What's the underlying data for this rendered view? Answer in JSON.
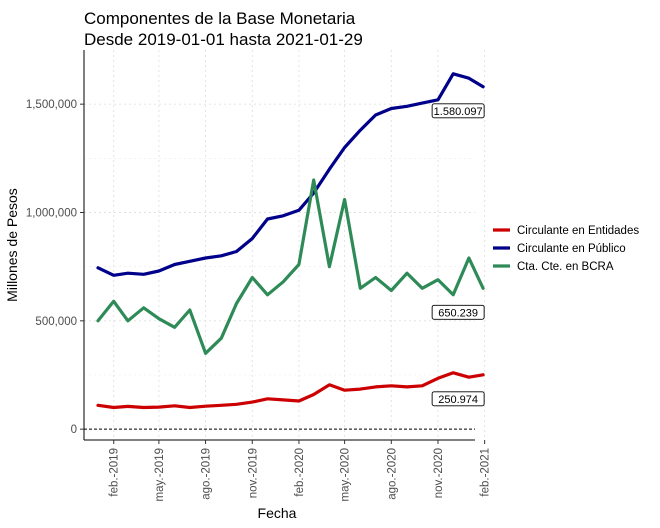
{
  "chart_data": {
    "type": "line",
    "title": [
      "Componentes de la Base Monetaria",
      "Desde 2019-01-01 hasta 2021-01-29"
    ],
    "xlabel": "Fecha",
    "ylabel": "Millones de Pesos",
    "xlim": [
      "2019-01-01",
      "2021-01-29"
    ],
    "ylim": [
      -50000,
      1750000
    ],
    "y_ticks": [
      0,
      500000,
      1000000,
      1500000
    ],
    "y_tick_labels": [
      "0",
      "500,000",
      "1,000,000",
      "1,500,000"
    ],
    "x_ticks": [
      "2019-02-01",
      "2019-05-01",
      "2019-08-01",
      "2019-11-01",
      "2020-02-01",
      "2020-05-01",
      "2020-08-01",
      "2020-11-01",
      "2021-02-01"
    ],
    "x_tick_labels": [
      "feb.-2019",
      "may.-2019",
      "ago.-2019",
      "nov.-2019",
      "feb.-2020",
      "may.-2020",
      "ago.-2020",
      "nov.-2020",
      "feb.-2021"
    ],
    "grid": true,
    "legend_position": "right",
    "reference_line": {
      "y": 0,
      "style": "dashed"
    },
    "series": [
      {
        "name": "Circulante en Entidades",
        "color": "#cc0000",
        "points": [
          [
            "2019-01-01",
            110000
          ],
          [
            "2019-02-01",
            100000
          ],
          [
            "2019-03-01",
            105000
          ],
          [
            "2019-04-01",
            100000
          ],
          [
            "2019-05-01",
            102000
          ],
          [
            "2019-06-01",
            108000
          ],
          [
            "2019-07-01",
            100000
          ],
          [
            "2019-08-01",
            106000
          ],
          [
            "2019-09-01",
            110000
          ],
          [
            "2019-10-01",
            115000
          ],
          [
            "2019-11-01",
            125000
          ],
          [
            "2019-12-01",
            140000
          ],
          [
            "2020-01-01",
            135000
          ],
          [
            "2020-02-01",
            130000
          ],
          [
            "2020-03-01",
            160000
          ],
          [
            "2020-04-01",
            205000
          ],
          [
            "2020-05-01",
            180000
          ],
          [
            "2020-06-01",
            185000
          ],
          [
            "2020-07-01",
            195000
          ],
          [
            "2020-08-01",
            200000
          ],
          [
            "2020-09-01",
            195000
          ],
          [
            "2020-10-01",
            200000
          ],
          [
            "2020-11-01",
            235000
          ],
          [
            "2020-12-01",
            260000
          ],
          [
            "2021-01-01",
            240000
          ],
          [
            "2021-01-29",
            250974
          ]
        ]
      },
      {
        "name": "Circulante en Público",
        "color": "#00008b",
        "points": [
          [
            "2019-01-01",
            745000
          ],
          [
            "2019-02-01",
            710000
          ],
          [
            "2019-03-01",
            720000
          ],
          [
            "2019-04-01",
            715000
          ],
          [
            "2019-05-01",
            730000
          ],
          [
            "2019-06-01",
            760000
          ],
          [
            "2019-07-01",
            775000
          ],
          [
            "2019-08-01",
            790000
          ],
          [
            "2019-09-01",
            800000
          ],
          [
            "2019-10-01",
            820000
          ],
          [
            "2019-11-01",
            880000
          ],
          [
            "2019-12-01",
            970000
          ],
          [
            "2020-01-01",
            985000
          ],
          [
            "2020-02-01",
            1010000
          ],
          [
            "2020-03-01",
            1090000
          ],
          [
            "2020-04-01",
            1200000
          ],
          [
            "2020-05-01",
            1300000
          ],
          [
            "2020-06-01",
            1380000
          ],
          [
            "2020-07-01",
            1450000
          ],
          [
            "2020-08-01",
            1480000
          ],
          [
            "2020-09-01",
            1490000
          ],
          [
            "2020-10-01",
            1505000
          ],
          [
            "2020-11-01",
            1520000
          ],
          [
            "2020-12-01",
            1640000
          ],
          [
            "2021-01-01",
            1620000
          ],
          [
            "2021-01-29",
            1580097
          ]
        ]
      },
      {
        "name": "Cta. Cte. en BCRA",
        "color": "#2e8b57",
        "points": [
          [
            "2019-01-01",
            500000
          ],
          [
            "2019-02-01",
            590000
          ],
          [
            "2019-03-01",
            500000
          ],
          [
            "2019-04-01",
            560000
          ],
          [
            "2019-05-01",
            510000
          ],
          [
            "2019-06-01",
            470000
          ],
          [
            "2019-07-01",
            550000
          ],
          [
            "2019-08-01",
            350000
          ],
          [
            "2019-09-01",
            420000
          ],
          [
            "2019-10-01",
            580000
          ],
          [
            "2019-11-01",
            700000
          ],
          [
            "2019-12-01",
            620000
          ],
          [
            "2020-01-01",
            680000
          ],
          [
            "2020-02-01",
            760000
          ],
          [
            "2020-03-01",
            1150000
          ],
          [
            "2020-04-01",
            750000
          ],
          [
            "2020-05-01",
            1060000
          ],
          [
            "2020-06-01",
            650000
          ],
          [
            "2020-07-01",
            700000
          ],
          [
            "2020-08-01",
            640000
          ],
          [
            "2020-09-01",
            720000
          ],
          [
            "2020-10-01",
            650000
          ],
          [
            "2020-11-01",
            690000
          ],
          [
            "2020-12-01",
            620000
          ],
          [
            "2021-01-01",
            790000
          ],
          [
            "2021-01-29",
            650239
          ]
        ]
      }
    ],
    "annotations": [
      {
        "series": "Circulante en Público",
        "date": "2021-01-29",
        "value": 1580097,
        "label": "1.580.097"
      },
      {
        "series": "Cta. Cte. en BCRA",
        "date": "2021-01-29",
        "value": 650239,
        "label": "650.239"
      },
      {
        "series": "Circulante en Entidades",
        "date": "2021-01-29",
        "value": 250974,
        "label": "250.974"
      }
    ]
  }
}
